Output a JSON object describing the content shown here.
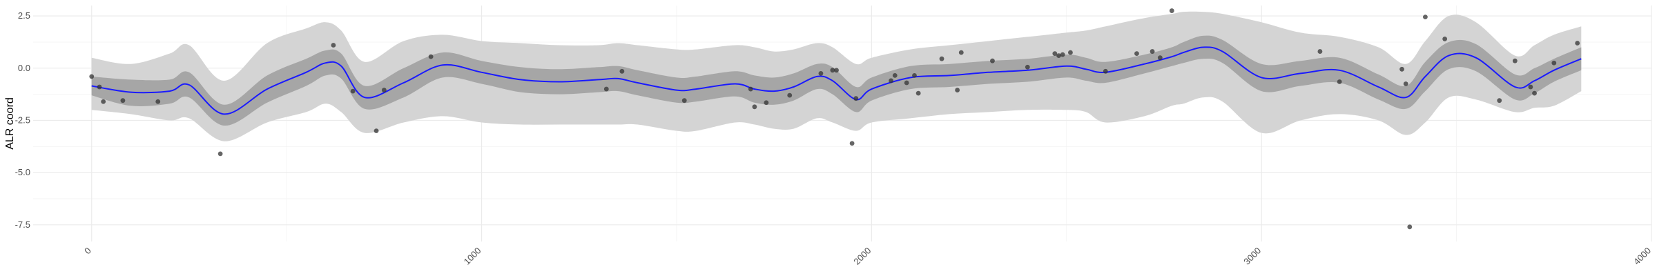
{
  "chart_data": {
    "type": "line",
    "title": "",
    "xlabel": "",
    "ylabel": "ALR coord",
    "xlim": [
      -150,
      4000
    ],
    "ylim": [
      -8.3,
      3.0
    ],
    "x_ticks": [
      0,
      1000,
      2000,
      3000,
      4000
    ],
    "x_tick_labels": [
      "0",
      "1000",
      "2000",
      "3000",
      "4000"
    ],
    "y_ticks": [
      2.5,
      0.0,
      -2.5,
      -5.0,
      -7.5
    ],
    "y_tick_labels": [
      "2.5",
      "0.0",
      "-2.5",
      "-5.0",
      "-7.5"
    ],
    "grid": true,
    "legend": "none",
    "colors": {
      "line": "#1a1aff",
      "inner_band": "#a6a6a6",
      "outer_band": "#d4d4d4",
      "points": "#333333"
    },
    "mean_line": {
      "x": [
        0,
        100,
        200,
        250,
        340,
        450,
        550,
        600,
        640,
        700,
        800,
        900,
        1000,
        1100,
        1200,
        1300,
        1350,
        1400,
        1500,
        1550,
        1650,
        1700,
        1750,
        1800,
        1860,
        1900,
        1960,
        2000,
        2100,
        2200,
        2300,
        2400,
        2500,
        2550,
        2600,
        2700,
        2770,
        2800,
        2850,
        2900,
        3000,
        3100,
        3200,
        3300,
        3370,
        3420,
        3480,
        3550,
        3650,
        3700,
        3750,
        3820
      ],
      "y": [
        -0.85,
        -1.15,
        -1.1,
        -0.8,
        -2.2,
        -1.0,
        -0.2,
        0.25,
        0.1,
        -1.4,
        -0.7,
        0.15,
        -0.2,
        -0.55,
        -0.65,
        -0.55,
        -0.5,
        -0.7,
        -1.05,
        -1.0,
        -0.75,
        -1.0,
        -1.1,
        -0.9,
        -0.4,
        -0.6,
        -1.5,
        -1.0,
        -0.45,
        -0.35,
        -0.2,
        -0.1,
        0.1,
        -0.05,
        -0.2,
        0.2,
        0.55,
        0.75,
        1.0,
        0.8,
        -0.45,
        -0.25,
        -0.1,
        -0.9,
        -1.4,
        -0.4,
        0.6,
        0.5,
        -0.9,
        -0.6,
        -0.1,
        0.45
      ]
    },
    "inner_band": {
      "x": [
        0,
        100,
        200,
        250,
        340,
        450,
        550,
        600,
        640,
        700,
        800,
        900,
        1000,
        1100,
        1200,
        1300,
        1350,
        1400,
        1500,
        1550,
        1650,
        1700,
        1750,
        1800,
        1860,
        1900,
        1960,
        2000,
        2100,
        2200,
        2300,
        2400,
        2500,
        2550,
        2600,
        2700,
        2770,
        2800,
        2850,
        2900,
        3000,
        3100,
        3200,
        3300,
        3370,
        3420,
        3480,
        3550,
        3650,
        3700,
        3750,
        3820
      ],
      "upper": [
        -0.4,
        -0.55,
        -0.55,
        -0.2,
        -1.75,
        -0.35,
        0.45,
        0.85,
        0.7,
        -0.85,
        0.0,
        0.75,
        0.35,
        0.05,
        -0.05,
        0.05,
        0.1,
        -0.1,
        -0.45,
        -0.4,
        -0.15,
        -0.35,
        -0.45,
        -0.25,
        0.2,
        0.05,
        -0.9,
        -0.45,
        0.1,
        0.2,
        0.35,
        0.45,
        0.65,
        0.5,
        0.3,
        0.65,
        1.0,
        1.25,
        1.55,
        1.35,
        0.2,
        0.35,
        0.5,
        -0.3,
        -0.85,
        0.3,
        1.25,
        1.15,
        -0.3,
        0.0,
        0.45,
        1.0
      ],
      "lower": [
        -1.3,
        -1.8,
        -1.7,
        -1.4,
        -2.75,
        -1.65,
        -0.85,
        -0.35,
        -0.5,
        -1.95,
        -1.4,
        -0.45,
        -0.75,
        -1.15,
        -1.25,
        -1.15,
        -1.1,
        -1.3,
        -1.65,
        -1.6,
        -1.35,
        -1.65,
        -1.75,
        -1.55,
        -1.0,
        -1.25,
        -2.1,
        -1.55,
        -1.0,
        -0.9,
        -0.75,
        -0.65,
        -0.45,
        -0.6,
        -0.7,
        -0.25,
        0.1,
        0.25,
        0.45,
        0.25,
        -1.1,
        -0.85,
        -0.7,
        -1.5,
        -1.95,
        -1.1,
        -0.05,
        -0.15,
        -1.5,
        -1.2,
        -0.65,
        -0.1
      ]
    },
    "outer_band": {
      "x": [
        0,
        100,
        200,
        250,
        340,
        450,
        550,
        600,
        640,
        700,
        800,
        900,
        1000,
        1100,
        1200,
        1300,
        1350,
        1400,
        1500,
        1550,
        1650,
        1700,
        1750,
        1800,
        1860,
        1900,
        1960,
        2000,
        2100,
        2200,
        2300,
        2400,
        2500,
        2550,
        2600,
        2700,
        2770,
        2800,
        2850,
        2900,
        3000,
        3100,
        3200,
        3300,
        3370,
        3420,
        3480,
        3550,
        3650,
        3700,
        3750,
        3820
      ],
      "upper": [
        0.5,
        0.2,
        0.7,
        1.1,
        -0.6,
        1.2,
        1.9,
        2.2,
        1.8,
        0.3,
        1.3,
        1.6,
        1.3,
        1.2,
        1.1,
        1.1,
        1.2,
        1.1,
        0.9,
        0.9,
        1.1,
        1.0,
        0.8,
        0.9,
        1.2,
        1.0,
        0.2,
        0.5,
        0.9,
        1.1,
        1.3,
        1.5,
        1.7,
        1.8,
        2.0,
        2.4,
        2.6,
        2.7,
        2.7,
        2.6,
        2.2,
        1.7,
        1.5,
        1.0,
        0.2,
        1.3,
        2.5,
        2.2,
        0.6,
        1.1,
        1.6,
        2.0
      ],
      "lower": [
        -2.0,
        -2.2,
        -2.5,
        -2.4,
        -3.5,
        -2.6,
        -2.1,
        -1.7,
        -2.1,
        -3.1,
        -2.6,
        -2.3,
        -2.6,
        -2.7,
        -2.7,
        -2.7,
        -2.7,
        -2.7,
        -3.0,
        -3.0,
        -2.6,
        -2.7,
        -2.9,
        -2.9,
        -2.4,
        -2.6,
        -3.0,
        -2.6,
        -2.4,
        -2.2,
        -2.1,
        -2.0,
        -2.0,
        -2.1,
        -2.6,
        -2.3,
        -1.8,
        -1.7,
        -1.4,
        -1.6,
        -3.1,
        -2.5,
        -2.2,
        -2.5,
        -3.2,
        -2.6,
        -1.4,
        -1.5,
        -2.1,
        -1.9,
        -1.8,
        -1.1
      ]
    },
    "points": {
      "x": [
        0,
        20,
        30,
        80,
        170,
        330,
        620,
        670,
        730,
        750,
        870,
        1320,
        1360,
        1520,
        1690,
        1700,
        1730,
        1790,
        1870,
        1900,
        1910,
        1950,
        1960,
        2050,
        2060,
        2090,
        2110,
        2120,
        2180,
        2220,
        2230,
        2310,
        2400,
        2470,
        2480,
        2490,
        2510,
        2600,
        2680,
        2720,
        2740,
        2770,
        3150,
        3200,
        3360,
        3370,
        3380,
        3420,
        3470,
        3610,
        3650,
        3690,
        3700,
        3750,
        3810
      ],
      "y": [
        -0.4,
        -0.9,
        -1.6,
        -1.55,
        -1.6,
        -4.1,
        1.1,
        -1.1,
        -3.0,
        -1.05,
        0.55,
        -1.0,
        -0.15,
        -1.55,
        -1.0,
        -1.85,
        -1.65,
        -1.3,
        -0.25,
        -0.1,
        -0.1,
        -3.6,
        -1.45,
        -0.6,
        -0.35,
        -0.7,
        -0.35,
        -1.2,
        0.45,
        -1.05,
        0.75,
        0.35,
        0.05,
        0.7,
        0.6,
        0.65,
        0.75,
        -0.15,
        0.7,
        0.8,
        0.5,
        2.75,
        0.8,
        -0.65,
        -0.05,
        -0.75,
        -7.6,
        2.45,
        1.4,
        -1.55,
        0.35,
        -0.9,
        -1.2,
        0.25,
        1.2
      ]
    }
  }
}
